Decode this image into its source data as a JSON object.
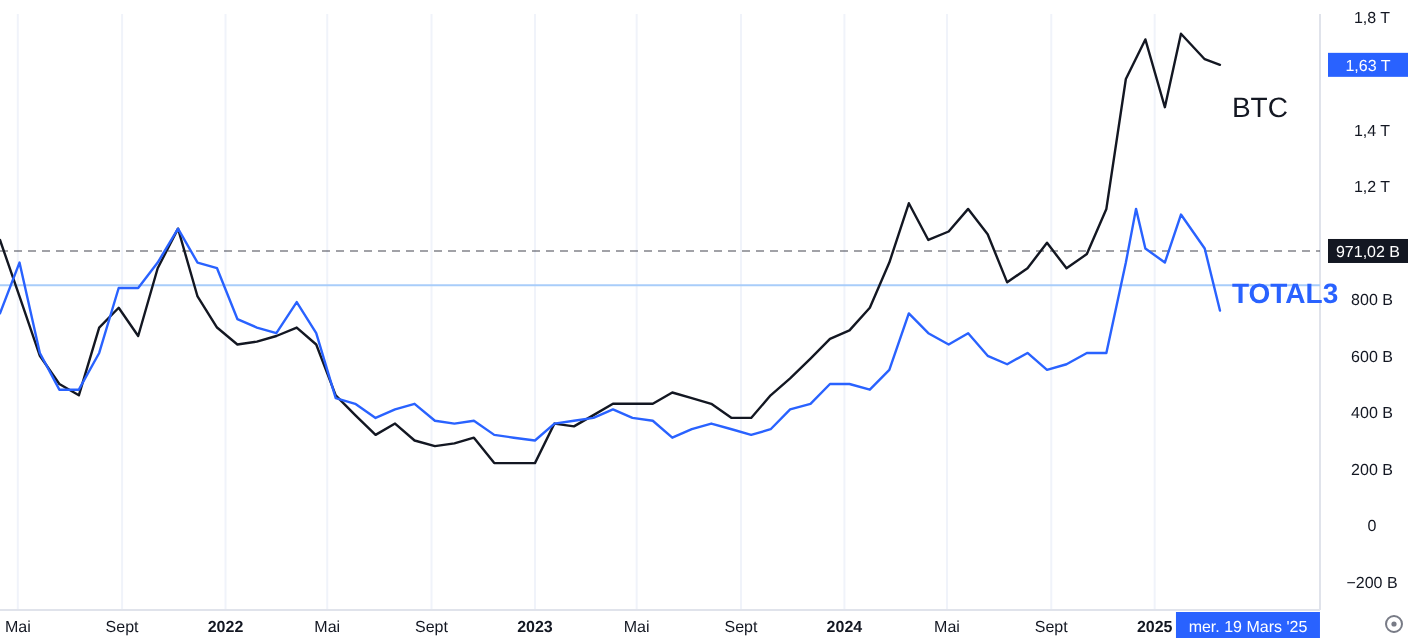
{
  "chart_data": {
    "type": "line",
    "grid": "x",
    "legend": "right",
    "xlim": [
      "2021-04-10",
      "2025-07-15"
    ],
    "xticks": [
      {
        "value": "2021-05-01",
        "label": "Mai"
      },
      {
        "value": "2021-09-01",
        "label": "Sept"
      },
      {
        "value": "2022-01-01",
        "label": "2022"
      },
      {
        "value": "2022-05-01",
        "label": "Mai"
      },
      {
        "value": "2022-09-01",
        "label": "Sept"
      },
      {
        "value": "2023-01-01",
        "label": "2023"
      },
      {
        "value": "2023-05-01",
        "label": "Mai"
      },
      {
        "value": "2023-09-01",
        "label": "Sept"
      },
      {
        "value": "2024-01-01",
        "label": "2024"
      },
      {
        "value": "2024-05-01",
        "label": "Mai"
      },
      {
        "value": "2024-09-01",
        "label": "Sept"
      },
      {
        "value": "2025-01-01",
        "label": "2025"
      }
    ],
    "ylim": [
      -300000000000.0,
      1810000000000.0
    ],
    "yticks": [
      {
        "value": 1800000000000.0,
        "label": "1,8 T"
      },
      {
        "value": 1400000000000.0,
        "label": "1,4 T"
      },
      {
        "value": 1200000000000.0,
        "label": "1,2 T"
      },
      {
        "value": 800000000000.0,
        "label": "800 B"
      },
      {
        "value": 600000000000.0,
        "label": "600 B"
      },
      {
        "value": 400000000000.0,
        "label": "400 B"
      },
      {
        "value": 200000000000.0,
        "label": "200 B"
      },
      0,
      {
        "value": -200000000000.0,
        "label": "−200 B"
      }
    ],
    "ref_lines": [
      {
        "axis": "y",
        "value": 971020000000.0,
        "label": "971,02 B",
        "color": "#131722",
        "line_style": "dashed"
      },
      {
        "axis": "y",
        "value": 850000000000.0,
        "color": "#a8cdfa",
        "line_style": "solid"
      }
    ],
    "annotations": [
      "1,63 T",
      "mer. 19 Mars '25"
    ],
    "series": [
      {
        "name": "BTC",
        "color": "#131722",
        "x": [
          "2021-04-10",
          "2021-05-03",
          "2021-05-27",
          "2021-06-19",
          "2021-07-12",
          "2021-08-05",
          "2021-08-28",
          "2021-09-20",
          "2021-10-13",
          "2021-11-06",
          "2021-11-29",
          "2021-12-22",
          "2022-01-15",
          "2022-02-07",
          "2022-03-02",
          "2022-03-26",
          "2022-04-18",
          "2022-05-11",
          "2022-06-03",
          "2022-06-27",
          "2022-07-20",
          "2022-08-12",
          "2022-09-05",
          "2022-09-28",
          "2022-10-21",
          "2022-11-14",
          "2022-12-07",
          "2023-01-01",
          "2023-01-24",
          "2023-02-16",
          "2023-03-11",
          "2023-04-03",
          "2023-04-26",
          "2023-05-20",
          "2023-06-12",
          "2023-07-05",
          "2023-07-28",
          "2023-08-21",
          "2023-09-13",
          "2023-10-06",
          "2023-10-29",
          "2023-11-22",
          "2023-12-15",
          "2024-01-07",
          "2024-01-31",
          "2024-02-23",
          "2024-03-17",
          "2024-04-09",
          "2024-05-03",
          "2024-05-26",
          "2024-06-18",
          "2024-07-11",
          "2024-08-04",
          "2024-08-27",
          "2024-09-19",
          "2024-10-13",
          "2024-11-05",
          "2024-11-28",
          "2024-12-21",
          "2025-01-13",
          "2025-02-01",
          "2025-03-01",
          "2025-03-19"
        ],
        "values": [
          1010000000000.0,
          810000000000.0,
          600000000000.0,
          500000000000.0,
          460000000000.0,
          700000000000.0,
          770000000000.0,
          670000000000.0,
          910000000000.0,
          1050000000000.0,
          810000000000.0,
          700000000000.0,
          640000000000.0,
          650000000000.0,
          670000000000.0,
          700000000000.0,
          640000000000.0,
          460000000000.0,
          390000000000.0,
          320000000000.0,
          360000000000.0,
          300000000000.0,
          280000000000.0,
          290000000000.0,
          310000000000.0,
          220000000000.0,
          220000000000.0,
          220000000000.0,
          360000000000.0,
          350000000000.0,
          390000000000.0,
          430000000000.0,
          430000000000.0,
          430000000000.0,
          470000000000.0,
          450000000000.0,
          430000000000.0,
          380000000000.0,
          380000000000.0,
          460000000000.0,
          520000000000.0,
          590000000000.0,
          660000000000.0,
          690000000000.0,
          770000000000.0,
          930000000000.0,
          1140000000000.0,
          1010000000000.0,
          1040000000000.0,
          1120000000000.0,
          1030000000000.0,
          860000000000.0,
          910000000000.0,
          1000000000000.0,
          910000000000.0,
          960000000000.0,
          1120000000000.0,
          1580000000000.0,
          1720000000000.0,
          1480000000000.0,
          1740000000000.0,
          1650000000000.0,
          1630000000000.0
        ]
      },
      {
        "name": "TOTAL3",
        "color": "#2962ff",
        "x": [
          "2021-04-10",
          "2021-05-03",
          "2021-05-27",
          "2021-06-19",
          "2021-07-12",
          "2021-08-05",
          "2021-08-28",
          "2021-09-20",
          "2021-10-13",
          "2021-11-06",
          "2021-11-29",
          "2021-12-22",
          "2022-01-15",
          "2022-02-07",
          "2022-03-02",
          "2022-03-26",
          "2022-04-18",
          "2022-05-11",
          "2022-06-03",
          "2022-06-27",
          "2022-07-20",
          "2022-08-12",
          "2022-09-05",
          "2022-09-28",
          "2022-10-21",
          "2022-11-14",
          "2022-12-07",
          "2023-01-01",
          "2023-01-24",
          "2023-02-16",
          "2023-03-11",
          "2023-04-03",
          "2023-04-26",
          "2023-05-20",
          "2023-06-12",
          "2023-07-05",
          "2023-07-28",
          "2023-08-21",
          "2023-09-13",
          "2023-10-06",
          "2023-10-29",
          "2023-11-22",
          "2023-12-15",
          "2024-01-07",
          "2024-01-31",
          "2024-02-23",
          "2024-03-17",
          "2024-04-09",
          "2024-05-03",
          "2024-05-26",
          "2024-06-18",
          "2024-07-11",
          "2024-08-04",
          "2024-08-27",
          "2024-09-19",
          "2024-10-13",
          "2024-11-05",
          "2024-11-28",
          "2024-12-10",
          "2024-12-21",
          "2025-01-13",
          "2025-02-01",
          "2025-03-01",
          "2025-03-19"
        ],
        "values": [
          750000000000.0,
          930000000000.0,
          610000000000.0,
          480000000000.0,
          480000000000.0,
          610000000000.0,
          840000000000.0,
          840000000000.0,
          930000000000.0,
          1050000000000.0,
          930000000000.0,
          910000000000.0,
          730000000000.0,
          700000000000.0,
          680000000000.0,
          790000000000.0,
          680000000000.0,
          450000000000.0,
          430000000000.0,
          380000000000.0,
          410000000000.0,
          430000000000.0,
          370000000000.0,
          360000000000.0,
          370000000000.0,
          320000000000.0,
          310000000000.0,
          300000000000.0,
          360000000000.0,
          370000000000.0,
          380000000000.0,
          410000000000.0,
          380000000000.0,
          370000000000.0,
          310000000000.0,
          340000000000.0,
          360000000000.0,
          340000000000.0,
          320000000000.0,
          340000000000.0,
          410000000000.0,
          430000000000.0,
          500000000000.0,
          500000000000.0,
          480000000000.0,
          550000000000.0,
          750000000000.0,
          680000000000.0,
          640000000000.0,
          680000000000.0,
          600000000000.0,
          570000000000.0,
          610000000000.0,
          550000000000.0,
          570000000000.0,
          610000000000.0,
          610000000000.0,
          930000000000.0,
          1120000000000.0,
          980000000000.0,
          930000000000.0,
          1100000000000.0,
          980000000000.0,
          760000000000.0
        ]
      }
    ]
  }
}
